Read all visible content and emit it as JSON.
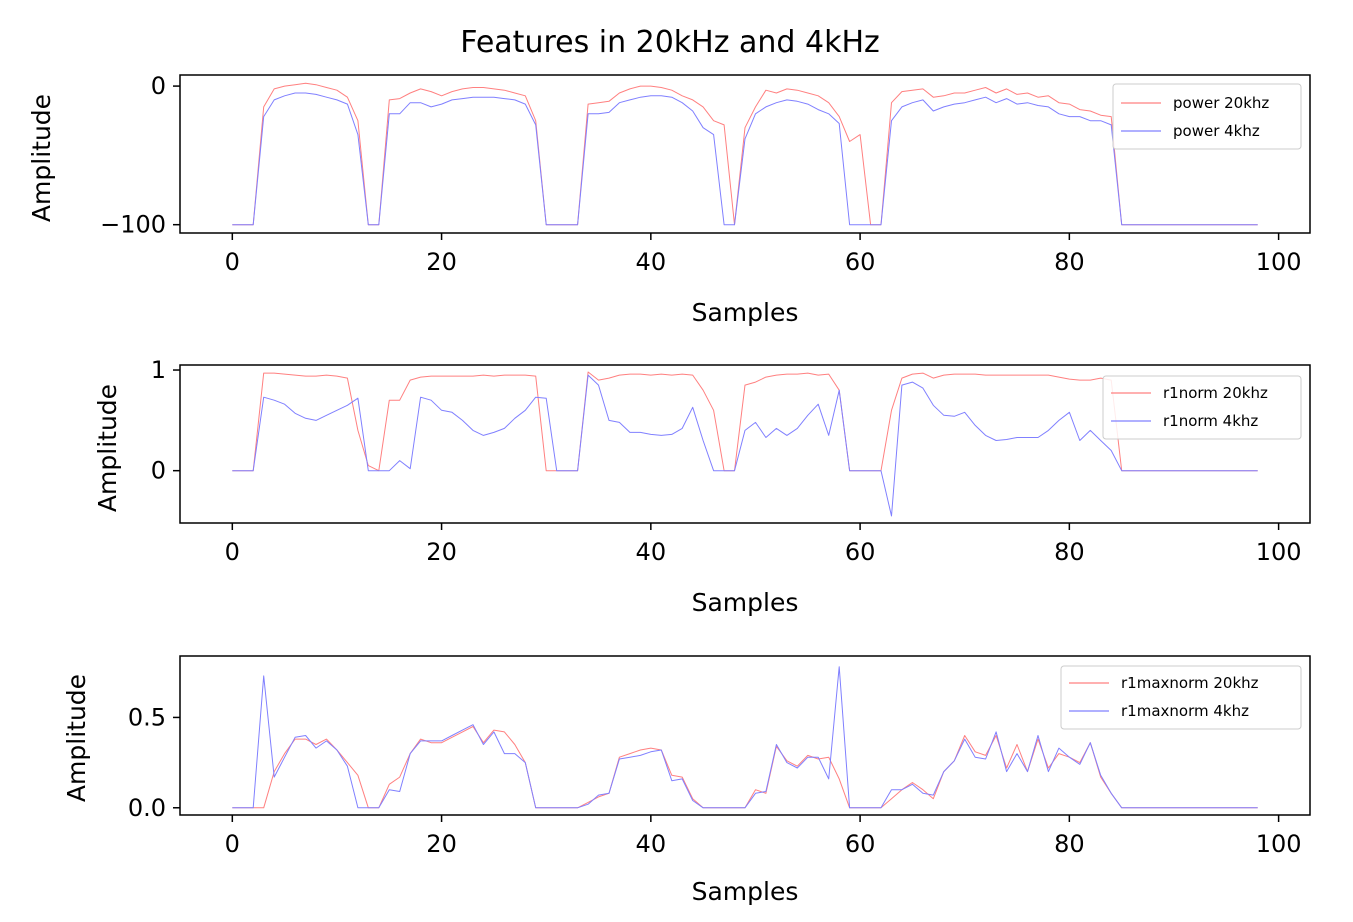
{
  "figure": {
    "title": "Features in 20kHz and 4kHz"
  },
  "chart_data": [
    {
      "type": "line",
      "xlabel": "Samples",
      "ylabel": "Amplitude",
      "xlim": [
        -5,
        103
      ],
      "ylim": [
        -106,
        8
      ],
      "xticks": [
        0,
        20,
        40,
        60,
        80,
        100
      ],
      "xtick_labels": [
        "0",
        "20",
        "40",
        "60",
        "80",
        "100"
      ],
      "yticks": [
        0,
        -100
      ],
      "ytick_labels": [
        "0",
        "−100"
      ],
      "grid": false,
      "legend_position": "top-right",
      "series": [
        {
          "name": "power 20khz",
          "color": "#ff8080",
          "values": [
            -100,
            -100,
            -100,
            -15,
            -2,
            0,
            1,
            2,
            1,
            -1,
            -3,
            -8,
            -25,
            -100,
            -100,
            -10,
            -9,
            -5,
            -2,
            -4,
            -7,
            -4,
            -2,
            -1,
            -1,
            -2,
            -3,
            -5,
            -7,
            -25,
            -100,
            -100,
            -100,
            -100,
            -13,
            -12,
            -11,
            -5,
            -2,
            0,
            0,
            -1,
            -3,
            -7,
            -10,
            -15,
            -25,
            -28,
            -100,
            -30,
            -15,
            -3,
            -5,
            -2,
            -3,
            -5,
            -7,
            -12,
            -22,
            -40,
            -35,
            -100,
            -100,
            -12,
            -4,
            -3,
            -2,
            -8,
            -7,
            -5,
            -5,
            -3,
            -1,
            -5,
            -2,
            -6,
            -5,
            -8,
            -7,
            -12,
            -13,
            -17,
            -18,
            -21,
            -22,
            -100,
            -100,
            -100,
            -100,
            -100,
            -100,
            -100,
            -100,
            -100,
            -100,
            -100,
            -100,
            -100,
            -100
          ]
        },
        {
          "name": "power 4khz",
          "color": "#8080ff",
          "values": [
            -100,
            -100,
            -100,
            -22,
            -10,
            -7,
            -5,
            -5,
            -6,
            -8,
            -10,
            -13,
            -35,
            -100,
            -100,
            -20,
            -20,
            -12,
            -12,
            -15,
            -13,
            -10,
            -9,
            -8,
            -8,
            -8,
            -9,
            -10,
            -13,
            -28,
            -100,
            -100,
            -100,
            -100,
            -20,
            -20,
            -19,
            -12,
            -10,
            -8,
            -7,
            -7,
            -8,
            -12,
            -18,
            -30,
            -35,
            -100,
            -100,
            -38,
            -20,
            -15,
            -12,
            -10,
            -11,
            -13,
            -17,
            -20,
            -27,
            -100,
            -100,
            -100,
            -100,
            -25,
            -15,
            -12,
            -10,
            -18,
            -15,
            -13,
            -12,
            -10,
            -8,
            -12,
            -9,
            -13,
            -12,
            -14,
            -15,
            -20,
            -22,
            -22,
            -25,
            -25,
            -28,
            -100,
            -100,
            -100,
            -100,
            -100,
            -100,
            -100,
            -100,
            -100,
            -100,
            -100,
            -100,
            -100,
            -100
          ]
        }
      ]
    },
    {
      "type": "line",
      "xlabel": "Samples",
      "ylabel": "Amplitude",
      "xlim": [
        -5,
        103
      ],
      "ylim": [
        -0.52,
        1.05
      ],
      "xticks": [
        0,
        20,
        40,
        60,
        80,
        100
      ],
      "xtick_labels": [
        "0",
        "20",
        "40",
        "60",
        "80",
        "100"
      ],
      "yticks": [
        1,
        0
      ],
      "ytick_labels": [
        "1",
        "0"
      ],
      "grid": false,
      "legend_position": "top-right",
      "series": [
        {
          "name": "r1norm 20khz",
          "color": "#ff8080",
          "values": [
            0,
            0,
            0,
            0.97,
            0.97,
            0.96,
            0.95,
            0.94,
            0.94,
            0.95,
            0.94,
            0.92,
            0.4,
            0.05,
            0,
            0.7,
            0.7,
            0.9,
            0.93,
            0.94,
            0.94,
            0.94,
            0.94,
            0.94,
            0.95,
            0.94,
            0.95,
            0.95,
            0.95,
            0.94,
            0,
            0,
            0,
            0,
            0.98,
            0.9,
            0.92,
            0.95,
            0.96,
            0.96,
            0.95,
            0.96,
            0.95,
            0.96,
            0.95,
            0.8,
            0.6,
            0,
            0,
            0.85,
            0.88,
            0.93,
            0.95,
            0.96,
            0.96,
            0.97,
            0.95,
            0.96,
            0.8,
            0,
            0,
            0,
            0,
            0.6,
            0.92,
            0.96,
            0.97,
            0.92,
            0.95,
            0.96,
            0.96,
            0.96,
            0.95,
            0.95,
            0.95,
            0.95,
            0.95,
            0.95,
            0.95,
            0.93,
            0.91,
            0.9,
            0.9,
            0.92,
            0.9,
            0,
            0,
            0,
            0,
            0,
            0,
            0,
            0,
            0,
            0,
            0,
            0,
            0,
            0
          ]
        },
        {
          "name": "r1norm 4khz",
          "color": "#8080ff",
          "values": [
            0,
            0,
            0,
            0.73,
            0.7,
            0.66,
            0.57,
            0.52,
            0.5,
            0.55,
            0.6,
            0.65,
            0.72,
            0,
            0,
            0,
            0.1,
            0.02,
            0.73,
            0.7,
            0.6,
            0.58,
            0.5,
            0.4,
            0.35,
            0.38,
            0.42,
            0.52,
            0.6,
            0.73,
            0.72,
            0,
            0,
            0,
            0.95,
            0.85,
            0.5,
            0.48,
            0.38,
            0.38,
            0.36,
            0.35,
            0.36,
            0.42,
            0.63,
            0.3,
            0,
            0,
            0,
            0.4,
            0.48,
            0.33,
            0.42,
            0.35,
            0.42,
            0.55,
            0.66,
            0.35,
            0.8,
            0,
            0,
            0,
            0,
            -0.45,
            0.85,
            0.88,
            0.82,
            0.65,
            0.55,
            0.54,
            0.58,
            0.45,
            0.35,
            0.3,
            0.31,
            0.33,
            0.33,
            0.33,
            0.4,
            0.5,
            0.58,
            0.3,
            0.4,
            0.3,
            0.2,
            0,
            0,
            0,
            0,
            0,
            0,
            0,
            0,
            0,
            0,
            0,
            0,
            0,
            0
          ]
        }
      ]
    },
    {
      "type": "line",
      "xlabel": "Samples",
      "ylabel": "Amplitude",
      "xlim": [
        -5,
        103
      ],
      "ylim": [
        -0.04,
        0.84
      ],
      "xticks": [
        0,
        20,
        40,
        60,
        80,
        100
      ],
      "xtick_labels": [
        "0",
        "20",
        "40",
        "60",
        "80",
        "100"
      ],
      "yticks": [
        0.5,
        0.0
      ],
      "ytick_labels": [
        "0.5",
        "0.0"
      ],
      "grid": false,
      "legend_position": "top-right",
      "series": [
        {
          "name": "r1maxnorm 20khz",
          "color": "#ff8080",
          "values": [
            0,
            0,
            0,
            0,
            0.2,
            0.3,
            0.38,
            0.38,
            0.35,
            0.38,
            0.32,
            0.25,
            0.18,
            0,
            0,
            0.13,
            0.17,
            0.3,
            0.38,
            0.36,
            0.36,
            0.39,
            0.42,
            0.45,
            0.36,
            0.43,
            0.42,
            0.35,
            0.25,
            0,
            0,
            0,
            0,
            0,
            0.03,
            0.06,
            0.08,
            0.28,
            0.3,
            0.32,
            0.33,
            0.32,
            0.18,
            0.17,
            0.05,
            0,
            0,
            0,
            0,
            0,
            0.1,
            0.08,
            0.34,
            0.26,
            0.23,
            0.29,
            0.27,
            0.28,
            0.16,
            0,
            0,
            0,
            0,
            0.05,
            0.1,
            0.14,
            0.1,
            0.05,
            0.2,
            0.26,
            0.4,
            0.31,
            0.29,
            0.4,
            0.22,
            0.35,
            0.2,
            0.38,
            0.22,
            0.3,
            0.28,
            0.25,
            0.36,
            0.17,
            0.08,
            0,
            0,
            0,
            0,
            0,
            0,
            0,
            0,
            0,
            0,
            0,
            0,
            0,
            0
          ]
        },
        {
          "name": "r1maxnorm 4khz",
          "color": "#8080ff",
          "values": [
            0,
            0,
            0,
            0.73,
            0.17,
            0.28,
            0.39,
            0.4,
            0.33,
            0.37,
            0.32,
            0.23,
            0,
            0,
            0,
            0.1,
            0.09,
            0.3,
            0.37,
            0.37,
            0.37,
            0.4,
            0.43,
            0.46,
            0.35,
            0.42,
            0.3,
            0.3,
            0.25,
            0,
            0,
            0,
            0,
            0,
            0.02,
            0.07,
            0.08,
            0.27,
            0.28,
            0.29,
            0.31,
            0.32,
            0.15,
            0.16,
            0.04,
            0,
            0,
            0,
            0,
            0,
            0.08,
            0.09,
            0.35,
            0.25,
            0.22,
            0.28,
            0.28,
            0.16,
            0.78,
            0,
            0,
            0,
            0,
            0.1,
            0.1,
            0.13,
            0.08,
            0.07,
            0.2,
            0.26,
            0.38,
            0.28,
            0.27,
            0.42,
            0.2,
            0.3,
            0.2,
            0.4,
            0.2,
            0.33,
            0.28,
            0.24,
            0.36,
            0.18,
            0.08,
            0,
            0,
            0,
            0,
            0,
            0,
            0,
            0,
            0,
            0,
            0,
            0,
            0,
            0
          ]
        }
      ]
    }
  ]
}
